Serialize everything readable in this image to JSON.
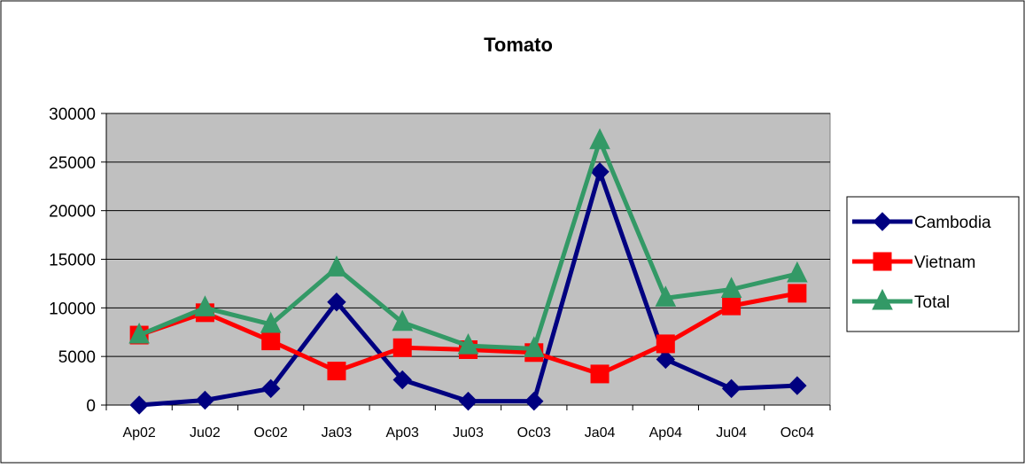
{
  "chart_data": {
    "type": "line",
    "title": "Tomato",
    "xlabel": "",
    "ylabel": "",
    "categories": [
      "Ap02",
      "Ju02",
      "Oc02",
      "Ja03",
      "Ap03",
      "Ju03",
      "Oc03",
      "Ja04",
      "Ap04",
      "Ju04",
      "Oc04"
    ],
    "ylim": [
      0,
      30000
    ],
    "yticks": [
      "0",
      "5000",
      "10000",
      "15000",
      "20000",
      "25000",
      "30000"
    ],
    "grid": true,
    "legend": "right",
    "series": [
      {
        "name": "Cambodia",
        "color": "#000080",
        "marker": "diamond",
        "values": [
          0,
          500,
          1700,
          10600,
          2600,
          400,
          400,
          24000,
          4700,
          1700,
          2000
        ]
      },
      {
        "name": "Vietnam",
        "color": "#FF0000",
        "marker": "square",
        "values": [
          7200,
          9500,
          6600,
          3500,
          5900,
          5700,
          5400,
          3200,
          6300,
          10200,
          11500
        ]
      },
      {
        "name": "Total",
        "color": "#339966",
        "marker": "triangle",
        "values": [
          7200,
          10000,
          8300,
          14100,
          8500,
          6100,
          5800,
          27200,
          11000,
          11900,
          13500
        ]
      }
    ]
  }
}
